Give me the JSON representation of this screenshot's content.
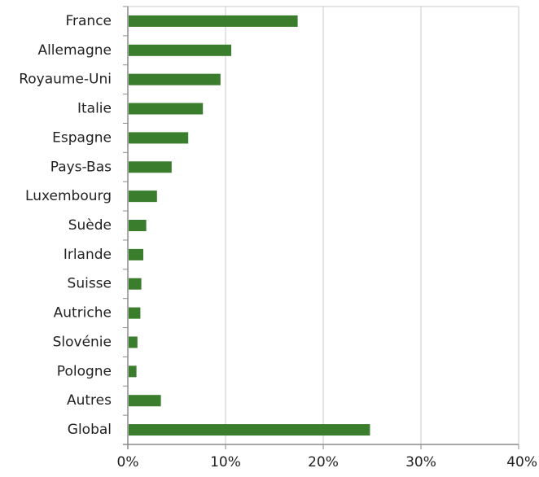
{
  "chart_data": {
    "type": "bar",
    "orientation": "horizontal",
    "title": "",
    "xlabel": "",
    "ylabel": "",
    "categories": [
      "France",
      "Allemagne",
      "Royaume-Uni",
      "Italie",
      "Espagne",
      "Pays-Bas",
      "Luxembourg",
      "Suède",
      "Irlande",
      "Suisse",
      "Autriche",
      "Slovénie",
      "Pologne",
      "Autres",
      "Global"
    ],
    "values": [
      17.3,
      10.5,
      9.4,
      7.6,
      6.1,
      4.4,
      2.9,
      1.8,
      1.5,
      1.3,
      1.2,
      0.9,
      0.8,
      3.3,
      24.7
    ],
    "xlim": [
      0,
      40
    ],
    "xticks": [
      0,
      10,
      20,
      30,
      40
    ],
    "xtick_labels": [
      "0%",
      "10%",
      "20%",
      "30%",
      "40%"
    ],
    "grid": true,
    "legend": "none",
    "colors": {
      "bar": "#3a7d2c",
      "grid": "#c8c8c8",
      "axis": "#8c8c8c"
    }
  }
}
